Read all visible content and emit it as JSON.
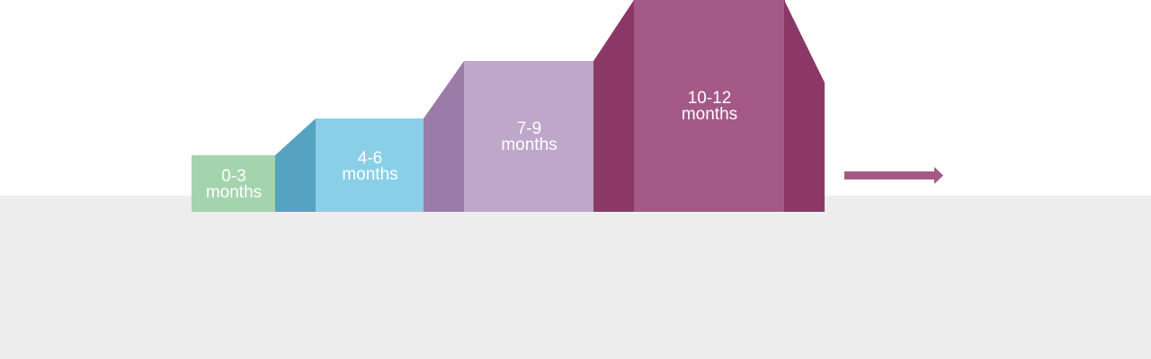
{
  "stages": [
    {
      "line1": "0-3",
      "line2": "months",
      "front_color": "#a4d4ae",
      "side_color": ""
    },
    {
      "line1": "4-6",
      "line2": "months",
      "front_color": "#89cfe7",
      "side_color": "#55a3c0"
    },
    {
      "line1": "7-9",
      "line2": "months",
      "front_color": "#bea7ca",
      "side_color": "#9b7ca8"
    },
    {
      "line1": "10-12",
      "line2": "months",
      "front_color": "#a45886",
      "side_color": "#8b3866"
    }
  ],
  "arrow": {
    "color": "#a45886",
    "icon": "right-arrow-icon"
  },
  "floor_color": "#ededed"
}
